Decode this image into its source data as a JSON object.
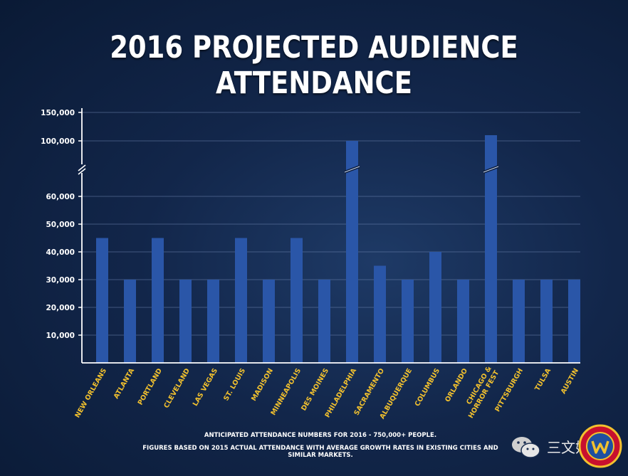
{
  "title": "2016 PROJECTED AUDIENCE ATTENDANCE",
  "footnote_line1": "ANTICIPATED ATTENDANCE NUMBERS FOR 2016 - 750,000+ PEOPLE.",
  "footnote_line2": "FIGURES BASED ON 2015 ACTUAL ATTENDANCE WITH AVERAGE GROWTH RATES IN EXISTING CITIES AND SIMILAR MARKETS.",
  "watermark_text": "三文娱",
  "icons": {
    "watermark": "wechat-icon",
    "logo": "wizard-world-comic-con-logo"
  },
  "colors": {
    "bar": "#2a56a8",
    "category_label": "#f2c12e",
    "axis": "#ffffff",
    "grid": "#6f86b0"
  },
  "chart_data": {
    "type": "bar",
    "title": "2016 PROJECTED AUDIENCE ATTENDANCE",
    "xlabel": "",
    "ylabel": "",
    "categories": [
      "NEW ORLEANS",
      "ATLANTA",
      "PORTLAND",
      "CLEVELAND",
      "LAS VEGAS",
      "ST. LOUIS",
      "MADISON",
      "MINNEAPOLIS",
      "DES MOINES",
      "PHILADELPHIA",
      "SACRAMENTO",
      "ALBUQUERQUE",
      "COLUMBUS",
      "ORLANDO",
      "CHICAGO & HORROR FEST",
      "PITTSBURGH",
      "TULSA",
      "AUSTIN"
    ],
    "values": [
      45000,
      30000,
      45000,
      30000,
      30000,
      45000,
      30000,
      45000,
      30000,
      100000,
      35000,
      30000,
      40000,
      30000,
      110000,
      30000,
      30000,
      30000
    ],
    "yticks_lower": [
      "10,000",
      "20,000",
      "30,000",
      "40,000",
      "50,000",
      "60,000"
    ],
    "yticks_upper": [
      "100,000",
      "150,000"
    ],
    "axis_break": true,
    "ylim": [
      0,
      150000
    ],
    "grid": true,
    "legend": "none"
  }
}
